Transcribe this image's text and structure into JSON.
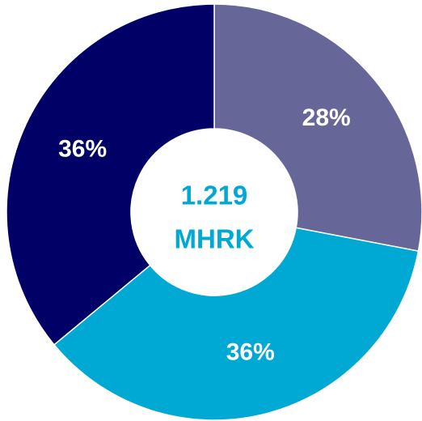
{
  "chart_data": {
    "type": "donut",
    "categories": [
      null,
      null,
      null
    ],
    "values": [
      28,
      36,
      36
    ],
    "value_labels": [
      "28%",
      "36%",
      "36%"
    ],
    "colors": [
      "#666699",
      "#00a8d4",
      "#000066"
    ],
    "center_label": [
      "1.219",
      "MHRK"
    ]
  }
}
